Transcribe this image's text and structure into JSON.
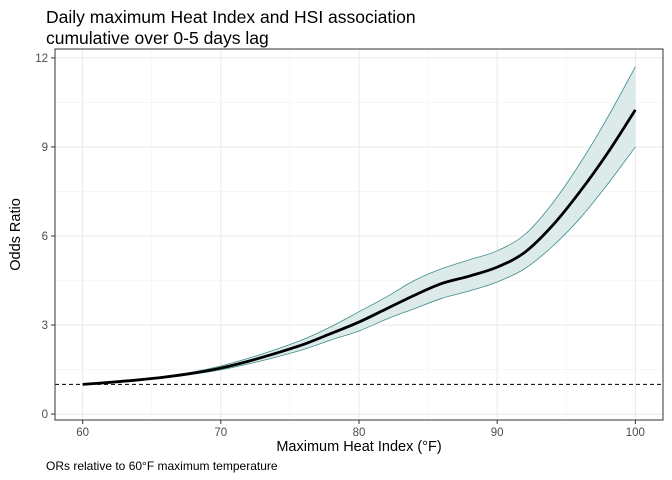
{
  "title_lines": [
    "Daily maximum Heat Index and HSI association",
    "cumulative over 0-5 days lag"
  ],
  "caption": "ORs relative to 60°F maximum temperature",
  "chart_data": {
    "type": "line",
    "title": "Daily maximum Heat Index and HSI association cumulative over 0-5 days lag",
    "xlabel": "Maximum Heat Index (°F)",
    "ylabel": "Odds Ratio",
    "xlim": [
      58,
      102
    ],
    "ylim": [
      -0.2,
      12.3
    ],
    "xticks": [
      60,
      70,
      80,
      90,
      100
    ],
    "yticks": [
      0,
      3,
      6,
      9,
      12
    ],
    "grid": true,
    "reference_line": {
      "y": 1,
      "style": "dashed"
    },
    "colors": {
      "ci_fill": "#dcebea",
      "ci_line": "#3f8d8a",
      "line": "#000000"
    },
    "series": [
      {
        "x": [
          60,
          62,
          64,
          66,
          68,
          70,
          72,
          74,
          76,
          78,
          80,
          82,
          84,
          86,
          88,
          90,
          92,
          94,
          96,
          98,
          100
        ],
        "y": [
          1.0,
          1.07,
          1.15,
          1.25,
          1.38,
          1.55,
          1.78,
          2.05,
          2.35,
          2.72,
          3.1,
          3.55,
          4.0,
          4.4,
          4.65,
          4.95,
          5.45,
          6.35,
          7.5,
          8.8,
          10.25
        ],
        "lower": [
          1.0,
          1.06,
          1.13,
          1.22,
          1.34,
          1.49,
          1.69,
          1.92,
          2.18,
          2.5,
          2.8,
          3.2,
          3.55,
          3.9,
          4.15,
          4.45,
          4.9,
          5.65,
          6.6,
          7.75,
          9.0
        ],
        "upper": [
          1.0,
          1.08,
          1.17,
          1.28,
          1.42,
          1.62,
          1.88,
          2.18,
          2.52,
          2.95,
          3.45,
          3.95,
          4.5,
          4.9,
          5.2,
          5.5,
          6.05,
          7.1,
          8.45,
          10.0,
          11.7
        ]
      }
    ]
  }
}
